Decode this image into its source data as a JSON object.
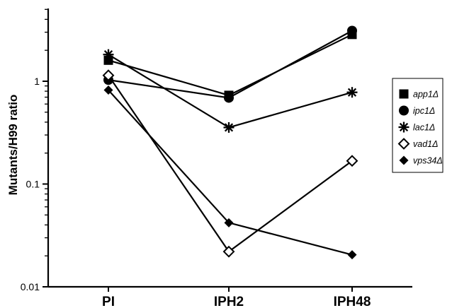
{
  "chart_data": {
    "type": "line",
    "yscale": "log",
    "ylim": [
      0.01,
      5
    ],
    "ylabel": "Mutants/H99 ratio",
    "xlabel": "",
    "y_tick_labels": [
      "0.01",
      "0.1",
      "1"
    ],
    "categories": [
      "PI",
      "IPH2",
      "IPH48"
    ],
    "legend_position": "right",
    "series": [
      {
        "name": "app1Δ",
        "marker": "filled-square",
        "values": [
          1.6,
          0.73,
          2.85
        ]
      },
      {
        "name": "ipc1Δ",
        "marker": "filled-circle",
        "values": [
          1.03,
          0.69,
          3.1
        ]
      },
      {
        "name": "lac1Δ",
        "marker": "asterisk",
        "values": [
          1.82,
          0.355,
          0.78
        ]
      },
      {
        "name": "vad1Δ",
        "marker": "open-diamond",
        "values": [
          1.14,
          0.022,
          0.168
        ]
      },
      {
        "name": "vps34Δ",
        "marker": "filled-diamond",
        "values": [
          0.82,
          0.042,
          0.0205
        ]
      }
    ]
  }
}
